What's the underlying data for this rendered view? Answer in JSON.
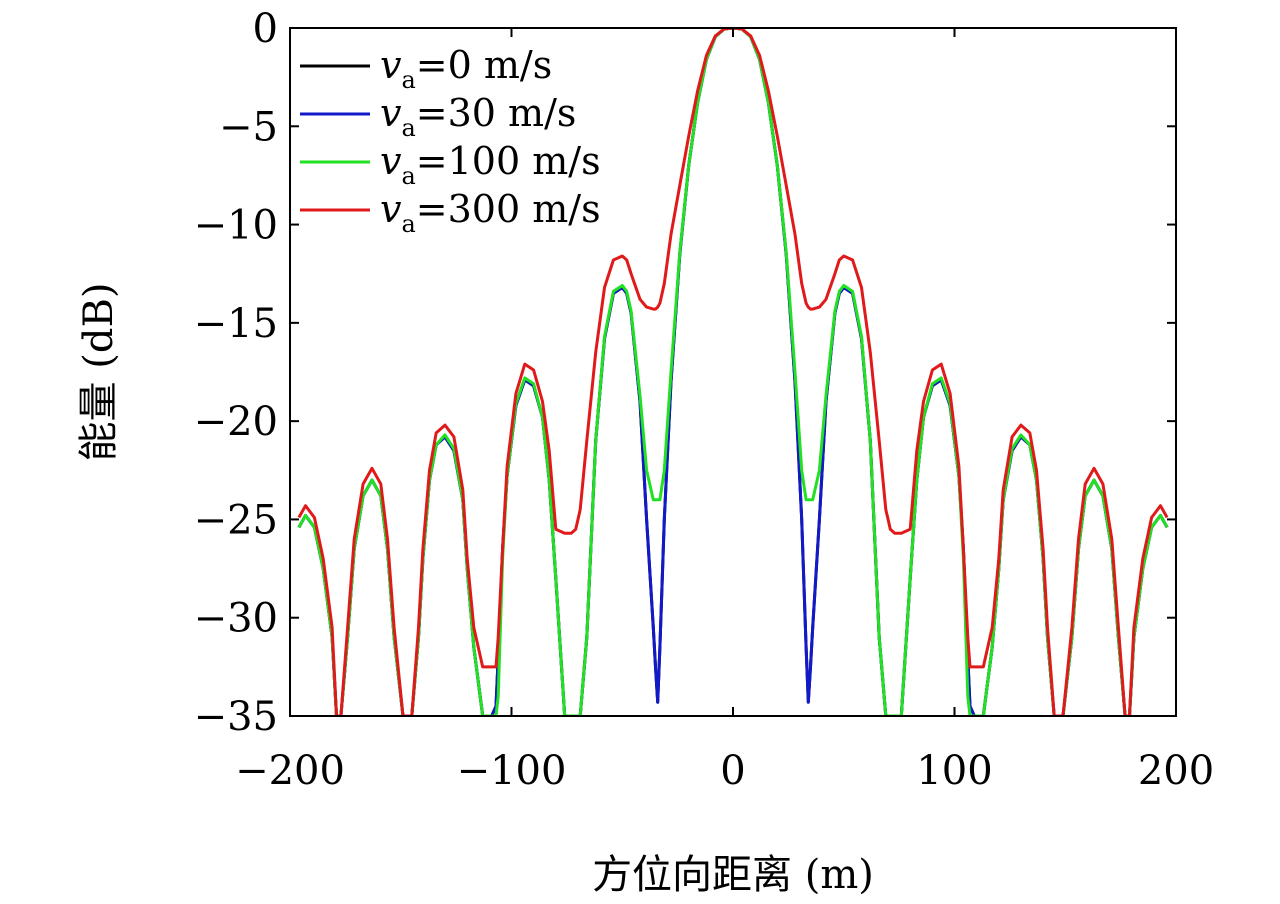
{
  "chart_data": {
    "type": "line",
    "xlabel": "方位向距离 (m)",
    "ylabel": "能量 (dB)",
    "xlim": [
      -200,
      200
    ],
    "ylim": [
      -35,
      0
    ],
    "xticks": [
      -200,
      -100,
      0,
      100,
      200
    ],
    "yticks": [
      0,
      -5,
      -10,
      -15,
      -20,
      -25,
      -30,
      -35
    ],
    "xtick_labels": [
      "−200",
      "−100",
      "0",
      "100",
      "200"
    ],
    "ytick_labels": [
      "0",
      "−5",
      "−10",
      "−15",
      "−20",
      "−25",
      "−30",
      "−35"
    ],
    "grid": false,
    "legend_position": "top-left",
    "series": [
      {
        "name": "v_a=0 m/s",
        "label_var": "v",
        "label_sub": "a",
        "label_rest": "=0 m/s",
        "color": "#000000",
        "x": [
          -196,
          -193,
          -189,
          -185,
          -181,
          -179,
          -177,
          -174,
          -171,
          -167,
          -163,
          -159,
          -156,
          -153,
          -149,
          -145,
          -142,
          -140,
          -137,
          -134,
          -130,
          -126,
          -122,
          -120,
          -117,
          -113,
          -109,
          -107,
          -106,
          -104,
          -102,
          -98,
          -94,
          -90,
          -86,
          -83,
          -80,
          -76,
          -73,
          -71,
          -70,
          -69,
          -66,
          -62,
          -58,
          -54,
          -50,
          -48,
          -46,
          -42,
          -39,
          -36,
          -35,
          -34,
          -33,
          -31,
          -28,
          -24,
          -20,
          -16,
          -12,
          -8,
          -4,
          0,
          4,
          8,
          12,
          16,
          20,
          24,
          28,
          31,
          33,
          34,
          35,
          36,
          39,
          42,
          46,
          48,
          50,
          54,
          58,
          62,
          66,
          69,
          70,
          71,
          73,
          76,
          80,
          83,
          86,
          90,
          94,
          98,
          102,
          104,
          106,
          107,
          109,
          113,
          117,
          120,
          122,
          126,
          130,
          134,
          137,
          140,
          142,
          145,
          149,
          153,
          156,
          159,
          163,
          167,
          171,
          174,
          177,
          179,
          181,
          185,
          189,
          193,
          196
        ],
        "y": [
          -25.4,
          -24.8,
          -25.4,
          -27.5,
          -31,
          -35,
          -35,
          -31,
          -26.5,
          -23.8,
          -23,
          -23.8,
          -26.5,
          -31,
          -35,
          -35,
          -31,
          -27,
          -23,
          -21.2,
          -20.8,
          -21.5,
          -24,
          -27.5,
          -31.5,
          -35,
          -35,
          -34.5,
          -32,
          -26.5,
          -22.8,
          -19.2,
          -17.9,
          -18.2,
          -19.8,
          -23,
          -28,
          -35,
          -35,
          -35,
          -35,
          -35,
          -31,
          -21,
          -15.8,
          -13.5,
          -13.2,
          -13.5,
          -14.5,
          -19,
          -25,
          -30.5,
          -32.5,
          -34.3,
          -31.5,
          -25,
          -18,
          -11.5,
          -7,
          -3.8,
          -1.6,
          -0.45,
          -0.05,
          0,
          -0.05,
          -0.45,
          -1.6,
          -3.8,
          -7,
          -11.5,
          -18,
          -25,
          -31.5,
          -34.3,
          -32.5,
          -30.5,
          -25,
          -19,
          -14.5,
          -13.5,
          -13.2,
          -13.5,
          -15.8,
          -21,
          -31,
          -35,
          -35,
          -35,
          -35,
          -35,
          -28,
          -23,
          -19.8,
          -18.2,
          -17.9,
          -19.2,
          -22.8,
          -26.5,
          -32,
          -34.5,
          -35,
          -35,
          -31.5,
          -27.5,
          -24,
          -21.5,
          -20.8,
          -21.2,
          -23,
          -27,
          -31,
          -35,
          -35,
          -31,
          -26.5,
          -23.8,
          -23,
          -23.8,
          -26.5,
          -31,
          -35,
          -35,
          -31,
          -27.5,
          -25.4,
          -24.8,
          -25.4
        ]
      },
      {
        "name": "v_a=30 m/s",
        "label_var": "v",
        "label_sub": "a",
        "label_rest": "=30 m/s",
        "color": "#1219c8",
        "x": [
          -196,
          -193,
          -189,
          -185,
          -181,
          -179,
          -177,
          -174,
          -171,
          -167,
          -163,
          -159,
          -156,
          -153,
          -149,
          -145,
          -142,
          -140,
          -137,
          -134,
          -130,
          -126,
          -122,
          -120,
          -117,
          -113,
          -109,
          -107,
          -106,
          -104,
          -102,
          -98,
          -94,
          -90,
          -86,
          -83,
          -80,
          -76,
          -73,
          -71,
          -70,
          -69,
          -66,
          -62,
          -58,
          -54,
          -50,
          -48,
          -46,
          -42,
          -39,
          -36,
          -35,
          -34,
          -33,
          -31,
          -28,
          -24,
          -20,
          -16,
          -12,
          -8,
          -4,
          0,
          4,
          8,
          12,
          16,
          20,
          24,
          28,
          31,
          33,
          34,
          35,
          36,
          39,
          42,
          46,
          48,
          50,
          54,
          58,
          62,
          66,
          69,
          70,
          71,
          73,
          76,
          80,
          83,
          86,
          90,
          94,
          98,
          102,
          104,
          106,
          107,
          109,
          113,
          117,
          120,
          122,
          126,
          130,
          134,
          137,
          140,
          142,
          145,
          149,
          153,
          156,
          159,
          163,
          167,
          171,
          174,
          177,
          179,
          181,
          185,
          189,
          193,
          196
        ],
        "y": [
          -25.4,
          -24.8,
          -25.4,
          -27.5,
          -31,
          -35,
          -35,
          -31,
          -26.5,
          -23.8,
          -23,
          -23.8,
          -26.5,
          -31,
          -35,
          -35,
          -31,
          -27,
          -23,
          -21.2,
          -20.8,
          -21.5,
          -24,
          -27.5,
          -31.5,
          -35,
          -35,
          -34.5,
          -32,
          -26.5,
          -22.8,
          -19.2,
          -17.9,
          -18.2,
          -19.8,
          -23,
          -28,
          -35,
          -35,
          -35,
          -35,
          -35,
          -31,
          -21,
          -15.8,
          -13.5,
          -13.2,
          -13.5,
          -14.5,
          -19,
          -25,
          -30.5,
          -32.5,
          -34.3,
          -31.5,
          -25,
          -18,
          -11.5,
          -7,
          -3.8,
          -1.6,
          -0.45,
          -0.05,
          0,
          -0.05,
          -0.45,
          -1.6,
          -3.8,
          -7,
          -11.5,
          -18,
          -25,
          -31.5,
          -34.3,
          -32.5,
          -30.5,
          -25,
          -19,
          -14.5,
          -13.5,
          -13.2,
          -13.5,
          -15.8,
          -21,
          -31,
          -35,
          -35,
          -35,
          -35,
          -35,
          -28,
          -23,
          -19.8,
          -18.2,
          -17.9,
          -19.2,
          -22.8,
          -26.5,
          -32,
          -34.5,
          -35,
          -35,
          -31.5,
          -27.5,
          -24,
          -21.5,
          -20.8,
          -21.2,
          -23,
          -27,
          -31,
          -35,
          -35,
          -31,
          -26.5,
          -23.8,
          -23,
          -23.8,
          -26.5,
          -31,
          -35,
          -35,
          -31,
          -27.5,
          -25.4,
          -24.8,
          -25.4
        ]
      },
      {
        "name": "v_a=100 m/s",
        "label_var": "v",
        "label_sub": "a",
        "label_rest": "=100 m/s",
        "color": "#22e022",
        "x": [
          -196,
          -193,
          -189,
          -185,
          -181,
          -179,
          -177,
          -174,
          -171,
          -167,
          -163,
          -159,
          -156,
          -153,
          -149,
          -145,
          -142,
          -140,
          -137,
          -134,
          -130,
          -126,
          -122,
          -120,
          -117,
          -113,
          -109,
          -107,
          -106,
          -104,
          -102,
          -98,
          -94,
          -90,
          -86,
          -83,
          -80,
          -76,
          -73,
          -71,
          -70,
          -69,
          -66,
          -62,
          -58,
          -54,
          -50,
          -48,
          -46,
          -42,
          -39,
          -36,
          -35,
          -34,
          -33,
          -31,
          -28,
          -24,
          -20,
          -16,
          -12,
          -8,
          -4,
          0,
          4,
          8,
          12,
          16,
          20,
          24,
          28,
          31,
          33,
          34,
          35,
          36,
          39,
          42,
          46,
          48,
          50,
          54,
          58,
          62,
          66,
          69,
          70,
          71,
          73,
          76,
          80,
          83,
          86,
          90,
          94,
          98,
          102,
          104,
          106,
          107,
          109,
          113,
          117,
          120,
          122,
          126,
          130,
          134,
          137,
          140,
          142,
          145,
          149,
          153,
          156,
          159,
          163,
          167,
          171,
          174,
          177,
          179,
          181,
          185,
          189,
          193,
          196
        ],
        "y": [
          -25.4,
          -24.8,
          -25.4,
          -27.5,
          -31,
          -35,
          -35,
          -31,
          -26.5,
          -23.8,
          -23,
          -23.8,
          -26.5,
          -31,
          -35,
          -35,
          -31,
          -27,
          -23,
          -21.2,
          -20.7,
          -21.4,
          -24,
          -27.5,
          -31.5,
          -35,
          -35,
          -35,
          -34,
          -27,
          -22.8,
          -19.1,
          -17.8,
          -18.1,
          -19.8,
          -23,
          -28,
          -35,
          -35,
          -35,
          -35,
          -35,
          -31,
          -21,
          -15.7,
          -13.4,
          -13.1,
          -13.4,
          -14.4,
          -18.7,
          -22.5,
          -24,
          -24,
          -24,
          -24,
          -22.5,
          -17.5,
          -11.4,
          -7,
          -3.8,
          -1.6,
          -0.45,
          -0.05,
          0,
          -0.05,
          -0.45,
          -1.6,
          -3.8,
          -7,
          -11.4,
          -17.5,
          -22.5,
          -24,
          -24,
          -24,
          -24,
          -22.5,
          -18.7,
          -14.4,
          -13.4,
          -13.1,
          -13.4,
          -15.7,
          -21,
          -31,
          -35,
          -35,
          -35,
          -35,
          -35,
          -28,
          -23,
          -19.8,
          -18.1,
          -17.8,
          -19.1,
          -22.8,
          -27,
          -34,
          -35,
          -35,
          -35,
          -31.5,
          -27.5,
          -24,
          -21.4,
          -20.7,
          -21.2,
          -23,
          -27,
          -31,
          -35,
          -35,
          -31,
          -26.5,
          -23.8,
          -23,
          -23.8,
          -26.5,
          -31,
          -35,
          -35,
          -31,
          -27.5,
          -25.4,
          -24.8,
          -25.4
        ]
      },
      {
        "name": "v_a=300 m/s",
        "label_var": "v",
        "label_sub": "a",
        "label_rest": "=300 m/s",
        "color": "#e01a1a",
        "x": [
          -196,
          -193,
          -189,
          -185,
          -181,
          -179,
          -177,
          -174,
          -171,
          -167,
          -163,
          -159,
          -156,
          -153,
          -149,
          -145,
          -142,
          -140,
          -137,
          -134,
          -130,
          -126,
          -122,
          -120,
          -117,
          -113,
          -109,
          -107,
          -106,
          -104,
          -102,
          -98,
          -94,
          -90,
          -86,
          -83,
          -80,
          -76,
          -73,
          -71,
          -70,
          -69,
          -66,
          -62,
          -58,
          -54,
          -50,
          -48,
          -46,
          -42,
          -39,
          -36,
          -35,
          -34,
          -33,
          -31,
          -28,
          -24,
          -20,
          -16,
          -12,
          -8,
          -4,
          0,
          4,
          8,
          12,
          16,
          20,
          24,
          28,
          31,
          33,
          34,
          35,
          36,
          39,
          42,
          46,
          48,
          50,
          54,
          58,
          62,
          66,
          69,
          70,
          71,
          73,
          76,
          80,
          83,
          86,
          90,
          94,
          98,
          102,
          104,
          106,
          107,
          109,
          113,
          117,
          120,
          122,
          126,
          130,
          134,
          137,
          140,
          142,
          145,
          149,
          153,
          156,
          159,
          163,
          167,
          171,
          174,
          177,
          179,
          181,
          185,
          189,
          193,
          196
        ],
        "y": [
          -24.9,
          -24.3,
          -24.9,
          -27,
          -30.5,
          -35,
          -35,
          -30.5,
          -26,
          -23.2,
          -22.4,
          -23.2,
          -26,
          -30.5,
          -35,
          -35,
          -30.5,
          -26.5,
          -22.5,
          -20.6,
          -20.2,
          -20.8,
          -23.5,
          -27,
          -30.5,
          -32.5,
          -32.5,
          -32.5,
          -31,
          -26.5,
          -22.3,
          -18.6,
          -17.1,
          -17.4,
          -19,
          -21.5,
          -25.5,
          -25.7,
          -25.7,
          -25.5,
          -25,
          -24.5,
          -21,
          -16.5,
          -13.2,
          -11.8,
          -11.6,
          -11.8,
          -12.5,
          -13.8,
          -14.2,
          -14.3,
          -14.3,
          -14.2,
          -14,
          -13,
          -10.5,
          -8,
          -5.5,
          -3.2,
          -1.4,
          -0.4,
          -0.05,
          0,
          -0.05,
          -0.4,
          -1.4,
          -3.2,
          -5.5,
          -8,
          -10.5,
          -13,
          -14,
          -14.2,
          -14.3,
          -14.3,
          -14.2,
          -13.8,
          -12.5,
          -11.8,
          -11.6,
          -11.8,
          -13.2,
          -16.5,
          -21,
          -24.5,
          -25,
          -25.5,
          -25.7,
          -25.7,
          -25.5,
          -21.5,
          -19,
          -17.4,
          -17.1,
          -18.6,
          -22.3,
          -26.5,
          -31,
          -32.5,
          -32.5,
          -32.5,
          -30.5,
          -27,
          -23.5,
          -20.8,
          -20.2,
          -20.6,
          -22.5,
          -26.5,
          -30.5,
          -35,
          -35,
          -30.5,
          -26,
          -23.2,
          -22.4,
          -23.2,
          -26,
          -30.5,
          -35,
          -35,
          -30.5,
          -27,
          -24.9,
          -24.3,
          -24.9
        ]
      }
    ]
  }
}
